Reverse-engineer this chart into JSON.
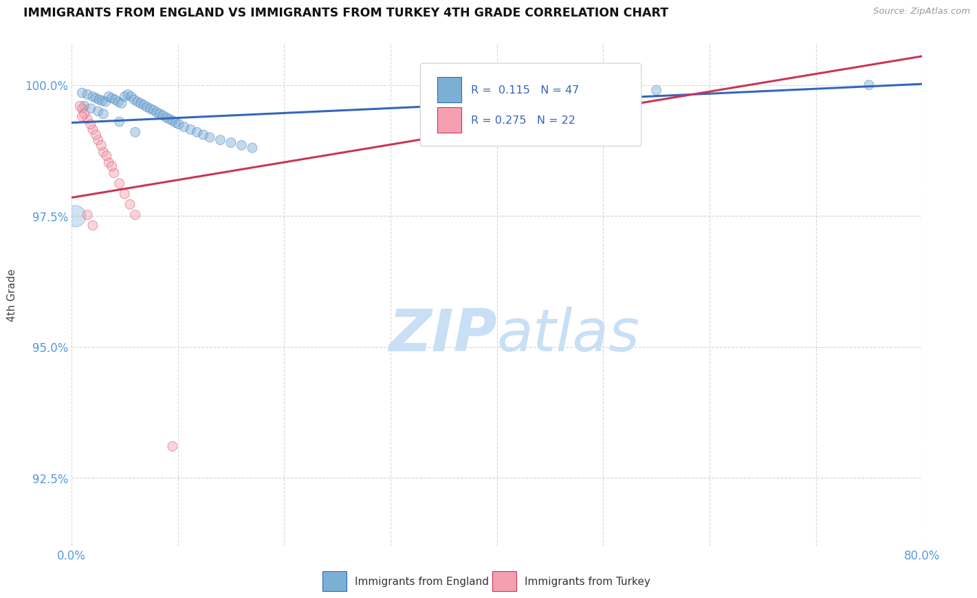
{
  "title": "IMMIGRANTS FROM ENGLAND VS IMMIGRANTS FROM TURKEY 4TH GRADE CORRELATION CHART",
  "source": "Source: ZipAtlas.com",
  "ylabel": "4th Grade",
  "xlim": [
    0.0,
    80.0
  ],
  "ylim": [
    91.2,
    100.8
  ],
  "xticks": [
    0.0,
    10.0,
    20.0,
    30.0,
    40.0,
    50.0,
    60.0,
    70.0,
    80.0
  ],
  "yticks": [
    92.5,
    95.0,
    97.5,
    100.0
  ],
  "x_tick_labels": [
    "0.0%",
    "",
    "",
    "",
    "",
    "",
    "",
    "",
    "80.0%"
  ],
  "y_tick_labels": [
    "92.5%",
    "95.0%",
    "97.5%",
    "100.0%"
  ],
  "legend_label_blue": "Immigrants from England",
  "legend_label_pink": "Immigrants from Turkey",
  "R_blue": 0.115,
  "N_blue": 47,
  "R_pink": 0.275,
  "N_pink": 22,
  "blue_color": "#7BAFD4",
  "pink_color": "#F4A0B0",
  "blue_line_color": "#3366BB",
  "pink_line_color": "#CC3355",
  "watermark_color": "#C8DFF5",
  "tick_color": "#5599DD",
  "blue_line_y0": 99.28,
  "blue_line_y1": 100.02,
  "pink_line_y0": 97.85,
  "pink_line_y1": 100.55,
  "blue_points_x": [
    1.0,
    1.5,
    2.0,
    2.3,
    2.6,
    2.9,
    3.2,
    3.5,
    3.8,
    4.1,
    4.4,
    4.7,
    5.0,
    5.3,
    5.6,
    5.9,
    6.2,
    6.5,
    6.8,
    7.1,
    7.4,
    7.7,
    8.0,
    8.3,
    8.6,
    8.9,
    9.2,
    9.5,
    9.8,
    10.1,
    10.6,
    11.2,
    11.8,
    12.4,
    13.0,
    14.0,
    15.0,
    16.0,
    17.0,
    1.2,
    1.8,
    2.5,
    3.0,
    4.5,
    6.0,
    55.0,
    75.0
  ],
  "blue_points_y": [
    99.85,
    99.82,
    99.78,
    99.75,
    99.72,
    99.7,
    99.68,
    99.78,
    99.75,
    99.72,
    99.68,
    99.65,
    99.78,
    99.82,
    99.78,
    99.72,
    99.68,
    99.65,
    99.62,
    99.58,
    99.55,
    99.52,
    99.48,
    99.45,
    99.42,
    99.38,
    99.35,
    99.32,
    99.28,
    99.25,
    99.2,
    99.15,
    99.1,
    99.05,
    99.0,
    98.95,
    98.9,
    98.85,
    98.8,
    99.6,
    99.55,
    99.5,
    99.45,
    99.3,
    99.1,
    99.9,
    100.0
  ],
  "blue_sizes": [
    100,
    100,
    100,
    100,
    100,
    100,
    100,
    100,
    100,
    100,
    100,
    100,
    100,
    100,
    100,
    100,
    100,
    100,
    100,
    100,
    100,
    100,
    100,
    100,
    100,
    100,
    100,
    100,
    100,
    100,
    100,
    100,
    100,
    100,
    100,
    100,
    100,
    100,
    100,
    100,
    100,
    100,
    100,
    100,
    100,
    100,
    100
  ],
  "pink_points_x": [
    1.0,
    1.5,
    2.0,
    2.5,
    3.0,
    3.5,
    4.0,
    4.5,
    5.0,
    5.5,
    6.0,
    1.2,
    1.8,
    2.3,
    2.8,
    3.3,
    3.8,
    0.8,
    1.0,
    1.5,
    2.0,
    9.5
  ],
  "pink_points_y": [
    99.55,
    99.35,
    99.15,
    98.95,
    98.72,
    98.52,
    98.32,
    98.12,
    97.92,
    97.72,
    97.52,
    99.45,
    99.25,
    99.05,
    98.85,
    98.65,
    98.45,
    99.6,
    99.4,
    97.52,
    97.32,
    93.1
  ],
  "pink_sizes": [
    100,
    100,
    100,
    100,
    100,
    100,
    100,
    100,
    100,
    100,
    100,
    100,
    100,
    100,
    100,
    100,
    100,
    100,
    100,
    100,
    100,
    100
  ],
  "large_blue_x": 0.3,
  "large_blue_y": 97.5,
  "large_blue_size": 500
}
